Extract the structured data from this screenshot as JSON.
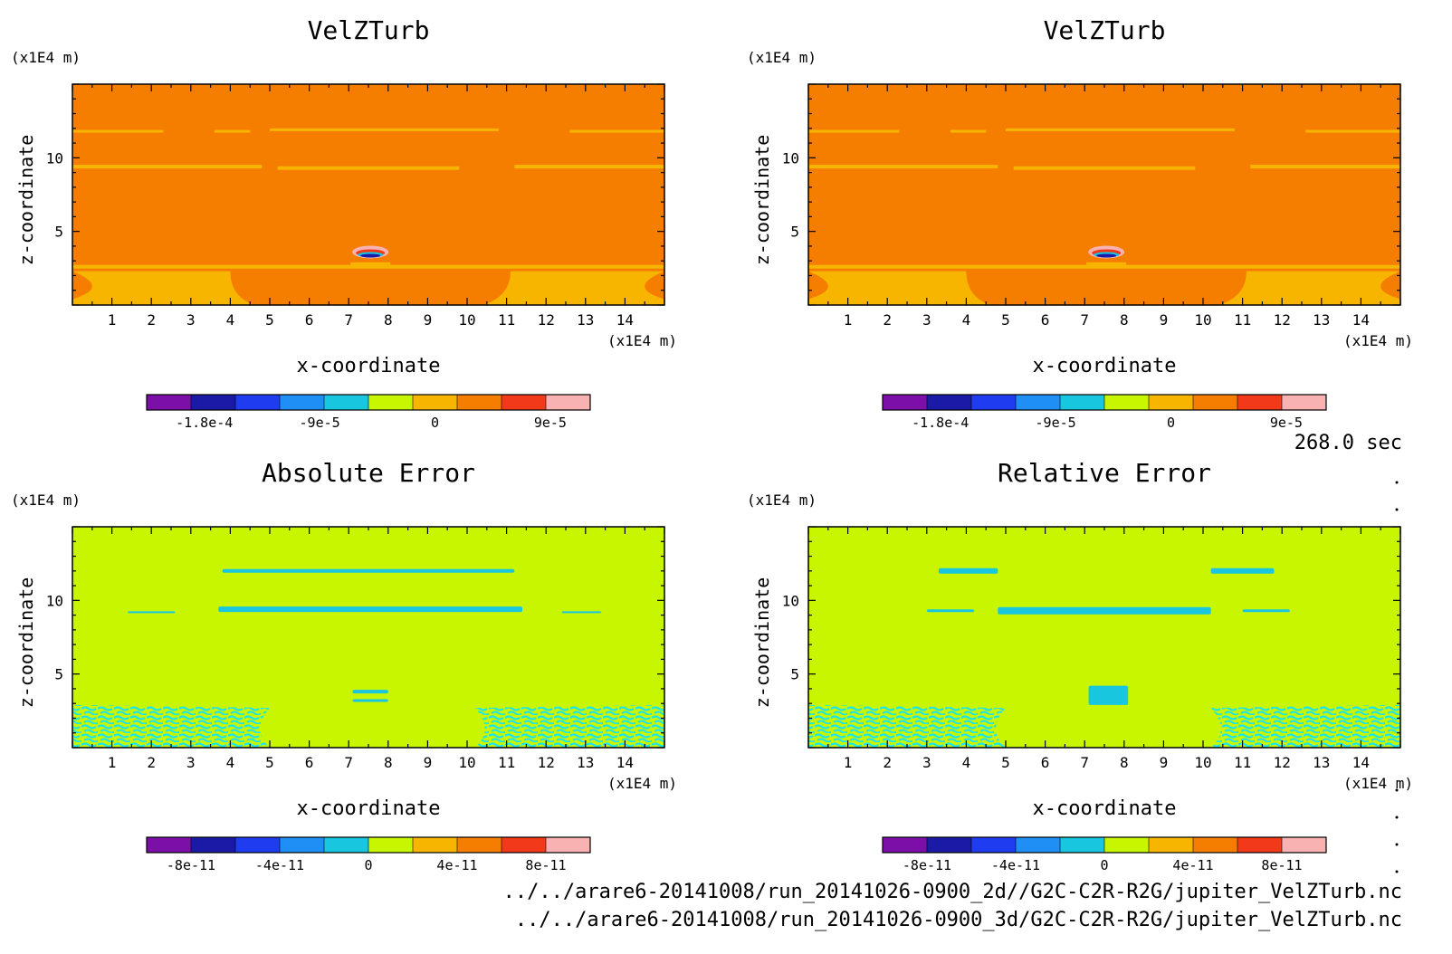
{
  "time_label": "268.0 sec",
  "files": [
    "../../arare6-20141008/run_20141026-0900_2d//G2C-C2R-R2G/jupiter_VelZTurb.nc",
    "../../arare6-20141008/run_20141026-0900_3d/G2C-C2R-R2G/jupiter_VelZTurb.nc"
  ],
  "palette": [
    "#7b0fa8",
    "#1a1aa6",
    "#1f3cf0",
    "#1f8ff5",
    "#18c6e0",
    "#c8f500",
    "#f7b500",
    "#f57e00",
    "#f23a1a",
    "#f83c50",
    "#f8b2b2"
  ],
  "chart_data": [
    {
      "type": "heatmap",
      "title": "VelZTurb",
      "xlabel": "x-coordinate",
      "ylabel": "z-coordinate",
      "x_unit": "(x1E4 m)",
      "y_unit": "(x1E4 m)",
      "xlim": [
        0,
        15
      ],
      "ylim": [
        0,
        15
      ],
      "x_ticks": [
        1,
        2,
        3,
        4,
        5,
        6,
        7,
        8,
        9,
        10,
        11,
        12,
        13,
        14
      ],
      "y_ticks": [
        5,
        10
      ],
      "colorbar_ticks": [
        "-1.8e-4",
        "-9e-5",
        "0",
        "9e-5"
      ],
      "colorbar_levels": [
        -0.000225,
        -0.0002,
        -0.000175,
        -0.00015,
        -0.000125,
        -0.0001,
        -7.5e-05,
        -5e-05,
        -2.5e-05,
        0,
        2.5e-05,
        5e-05
      ]
    },
    {
      "type": "heatmap",
      "title": "VelZTurb",
      "xlabel": "x-coordinate",
      "ylabel": "z-coordinate",
      "x_unit": "(x1E4 m)",
      "y_unit": "(x1E4 m)",
      "xlim": [
        0,
        15
      ],
      "ylim": [
        0,
        15
      ],
      "x_ticks": [
        1,
        2,
        3,
        4,
        5,
        6,
        7,
        8,
        9,
        10,
        11,
        12,
        13,
        14
      ],
      "y_ticks": [
        5,
        10
      ],
      "colorbar_ticks": [
        "-1.8e-4",
        "-9e-5",
        "0",
        "9e-5"
      ]
    },
    {
      "type": "heatmap",
      "title": "Absolute Error",
      "xlabel": "x-coordinate",
      "ylabel": "z-coordinate",
      "x_unit": "(x1E4 m)",
      "y_unit": "(x1E4 m)",
      "xlim": [
        0,
        15
      ],
      "ylim": [
        0,
        15
      ],
      "x_ticks": [
        1,
        2,
        3,
        4,
        5,
        6,
        7,
        8,
        9,
        10,
        11,
        12,
        13,
        14
      ],
      "y_ticks": [
        5,
        10
      ],
      "colorbar_ticks": [
        "-8e-11",
        "-4e-11",
        "0",
        "4e-11",
        "8e-11"
      ]
    },
    {
      "type": "heatmap",
      "title": "Relative Error",
      "xlabel": "x-coordinate",
      "ylabel": "z-coordinate",
      "x_unit": "(x1E4 m)",
      "y_unit": "(x1E4 m)",
      "xlim": [
        0,
        15
      ],
      "ylim": [
        0,
        15
      ],
      "x_ticks": [
        1,
        2,
        3,
        4,
        5,
        6,
        7,
        8,
        9,
        10,
        11,
        12,
        13,
        14
      ],
      "y_ticks": [
        5,
        10
      ],
      "colorbar_ticks": [
        "-8e-11",
        "-4e-11",
        "0",
        "4e-11",
        "8e-11"
      ]
    }
  ]
}
